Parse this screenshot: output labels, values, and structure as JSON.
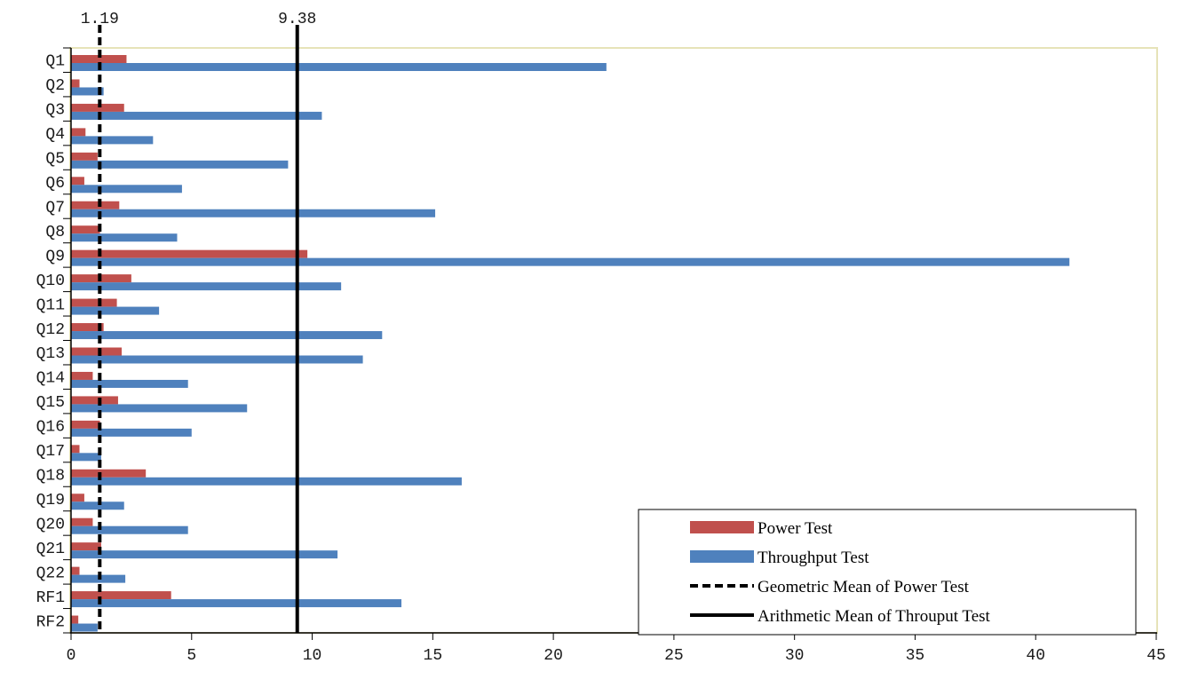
{
  "chart_data": {
    "type": "bar",
    "orientation": "horizontal",
    "title": "",
    "xlabel": "",
    "ylabel": "",
    "xlim": [
      0,
      45
    ],
    "x_ticks": [
      0,
      5,
      10,
      15,
      20,
      25,
      30,
      35,
      40,
      45
    ],
    "grid": false,
    "legend_position": "bottom-right",
    "categories": [
      "Q1",
      "Q2",
      "Q3",
      "Q4",
      "Q5",
      "Q6",
      "Q7",
      "Q8",
      "Q9",
      "Q10",
      "Q11",
      "Q12",
      "Q13",
      "Q14",
      "Q15",
      "Q16",
      "Q17",
      "Q18",
      "Q19",
      "Q20",
      "Q21",
      "Q22",
      "RF1",
      "RF2"
    ],
    "series": [
      {
        "name": "Power Test",
        "color": "#c0504d",
        "values": [
          2.3,
          0.35,
          2.2,
          0.6,
          1.1,
          0.55,
          2.0,
          1.2,
          9.8,
          2.5,
          1.9,
          1.35,
          2.1,
          0.9,
          1.95,
          1.2,
          0.35,
          3.1,
          0.55,
          0.9,
          1.25,
          0.35,
          4.15,
          0.3
        ]
      },
      {
        "name": "Throughput Test",
        "color": "#4f81bd",
        "values": [
          22.2,
          1.35,
          10.4,
          3.4,
          9.0,
          4.6,
          15.1,
          4.4,
          41.4,
          11.2,
          3.65,
          12.9,
          12.1,
          4.85,
          7.3,
          5.0,
          1.25,
          16.2,
          2.2,
          4.85,
          11.05,
          2.25,
          13.7,
          1.1
        ]
      }
    ],
    "reference_lines": [
      {
        "name": "Geometric Mean of Power Test",
        "value": 1.19,
        "label": "1.19",
        "style": "dashed",
        "color": "#000000"
      },
      {
        "name": "Arithmetic Mean of Throuput Test",
        "value": 9.38,
        "label": "9.38",
        "style": "solid",
        "color": "#000000"
      }
    ],
    "legend": [
      {
        "label": "Power Test",
        "kind": "bar",
        "color": "#c0504d"
      },
      {
        "label": "Throughput Test",
        "kind": "bar",
        "color": "#4f81bd"
      },
      {
        "label": "Geometric Mean of Power Test",
        "kind": "dashed-line",
        "color": "#000000"
      },
      {
        "label": "Arithmetic Mean of Throuput Test",
        "kind": "solid-line",
        "color": "#000000"
      }
    ]
  },
  "colors": {
    "plot_border": "#e6e3b8",
    "axis": "#000000",
    "background": "#ffffff"
  }
}
